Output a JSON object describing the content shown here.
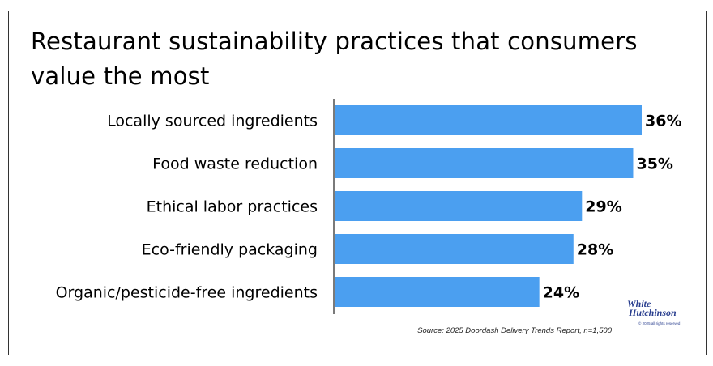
{
  "chart_data": {
    "type": "bar",
    "orientation": "horizontal",
    "title": "Restaurant sustainability practices that consumers value the most",
    "categories": [
      "Locally sourced ingredients",
      "Food waste reduction",
      "Ethical labor practices",
      "Eco-friendly packaging",
      "Organic/pesticide-free ingredients"
    ],
    "values": [
      36,
      35,
      29,
      28,
      24
    ],
    "value_labels": [
      "36%",
      "35%",
      "29%",
      "28%",
      "24%"
    ],
    "xlim": [
      0,
      36
    ],
    "bar_color": "#4b9ff0",
    "grid": false,
    "source": "Source: 2025 Doordash Delivery Trends Report, n=1,500"
  },
  "logo": {
    "line1": "White",
    "line2": "Hutchinson",
    "line3": "© 2025 all rights reserved"
  }
}
